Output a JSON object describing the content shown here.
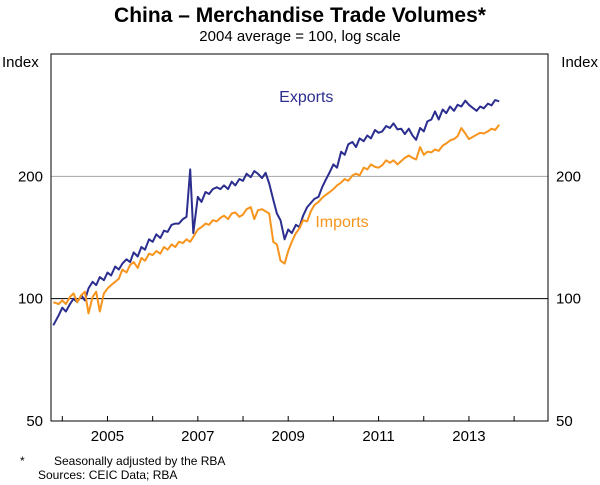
{
  "chart_data": {
    "type": "line",
    "title": "China – Merchandise Trade Volumes*",
    "subtitle": "2004 average = 100, log scale",
    "ylabel_left": "Index",
    "ylabel_right": "Index",
    "yscale": "log",
    "ylim": [
      50,
      400
    ],
    "y_ticks": [
      50,
      100,
      200
    ],
    "y_tick_labels": [
      "50",
      "100",
      "200"
    ],
    "xlim": [
      2003.75,
      2014.75
    ],
    "x_ticks": [
      2005,
      2007,
      2009,
      2011,
      2013
    ],
    "x_tick_labels": [
      "2005",
      "2007",
      "2009",
      "2011",
      "2013"
    ],
    "reference_line": 100,
    "series": [
      {
        "name": "Exports",
        "color": "#2b2e8f",
        "label_at": [
          2008.8,
          305
        ],
        "points": [
          [
            2003.8,
            86
          ],
          [
            2003.92,
            91
          ],
          [
            2004.0,
            95
          ],
          [
            2004.08,
            93
          ],
          [
            2004.17,
            97
          ],
          [
            2004.25,
            100
          ],
          [
            2004.33,
            98
          ],
          [
            2004.42,
            102
          ],
          [
            2004.5,
            99
          ],
          [
            2004.58,
            106
          ],
          [
            2004.67,
            110
          ],
          [
            2004.75,
            108
          ],
          [
            2004.83,
            113
          ],
          [
            2004.92,
            111
          ],
          [
            2005.0,
            116
          ],
          [
            2005.08,
            114
          ],
          [
            2005.17,
            120
          ],
          [
            2005.25,
            118
          ],
          [
            2005.33,
            122
          ],
          [
            2005.42,
            125
          ],
          [
            2005.5,
            123
          ],
          [
            2005.58,
            130
          ],
          [
            2005.67,
            127
          ],
          [
            2005.75,
            134
          ],
          [
            2005.83,
            132
          ],
          [
            2005.92,
            140
          ],
          [
            2006.0,
            138
          ],
          [
            2006.08,
            144
          ],
          [
            2006.17,
            141
          ],
          [
            2006.25,
            147
          ],
          [
            2006.33,
            146
          ],
          [
            2006.42,
            152
          ],
          [
            2006.5,
            153
          ],
          [
            2006.58,
            153
          ],
          [
            2006.67,
            157
          ],
          [
            2006.75,
            159
          ],
          [
            2006.83,
            208
          ],
          [
            2006.9,
            145
          ],
          [
            2007.0,
            178
          ],
          [
            2007.08,
            173
          ],
          [
            2007.17,
            183
          ],
          [
            2007.25,
            181
          ],
          [
            2007.33,
            186
          ],
          [
            2007.42,
            188
          ],
          [
            2007.5,
            186
          ],
          [
            2007.58,
            190
          ],
          [
            2007.67,
            186
          ],
          [
            2007.75,
            194
          ],
          [
            2007.83,
            190
          ],
          [
            2007.92,
            197
          ],
          [
            2008.0,
            195
          ],
          [
            2008.08,
            203
          ],
          [
            2008.17,
            199
          ],
          [
            2008.25,
            206
          ],
          [
            2008.33,
            203
          ],
          [
            2008.42,
            198
          ],
          [
            2008.5,
            204
          ],
          [
            2008.58,
            192
          ],
          [
            2008.67,
            175
          ],
          [
            2008.75,
            162
          ],
          [
            2008.83,
            156
          ],
          [
            2008.92,
            140
          ],
          [
            2009.0,
            148
          ],
          [
            2009.08,
            145
          ],
          [
            2009.17,
            152
          ],
          [
            2009.25,
            150
          ],
          [
            2009.33,
            160
          ],
          [
            2009.42,
            168
          ],
          [
            2009.5,
            172
          ],
          [
            2009.58,
            176
          ],
          [
            2009.67,
            178
          ],
          [
            2009.75,
            188
          ],
          [
            2009.83,
            196
          ],
          [
            2009.92,
            205
          ],
          [
            2010.0,
            214
          ],
          [
            2010.08,
            210
          ],
          [
            2010.17,
            230
          ],
          [
            2010.25,
            226
          ],
          [
            2010.33,
            240
          ],
          [
            2010.42,
            243
          ],
          [
            2010.5,
            236
          ],
          [
            2010.58,
            248
          ],
          [
            2010.67,
            244
          ],
          [
            2010.75,
            252
          ],
          [
            2010.83,
            248
          ],
          [
            2010.92,
            260
          ],
          [
            2011.0,
            256
          ],
          [
            2011.08,
            258
          ],
          [
            2011.17,
            266
          ],
          [
            2011.25,
            263
          ],
          [
            2011.33,
            270
          ],
          [
            2011.42,
            261
          ],
          [
            2011.5,
            262
          ],
          [
            2011.58,
            254
          ],
          [
            2011.67,
            262
          ],
          [
            2011.75,
            252
          ],
          [
            2011.83,
            246
          ],
          [
            2011.92,
            263
          ],
          [
            2012.0,
            258
          ],
          [
            2012.08,
            273
          ],
          [
            2012.17,
            276
          ],
          [
            2012.25,
            289
          ],
          [
            2012.33,
            276
          ],
          [
            2012.42,
            292
          ],
          [
            2012.5,
            286
          ],
          [
            2012.58,
            297
          ],
          [
            2012.67,
            290
          ],
          [
            2012.75,
            300
          ],
          [
            2012.83,
            297
          ],
          [
            2012.92,
            307
          ],
          [
            2013.0,
            300
          ],
          [
            2013.08,
            295
          ],
          [
            2013.17,
            290
          ],
          [
            2013.25,
            297
          ],
          [
            2013.33,
            294
          ],
          [
            2013.42,
            302
          ],
          [
            2013.5,
            299
          ],
          [
            2013.58,
            308
          ],
          [
            2013.67,
            306
          ]
        ]
      },
      {
        "name": "Imports",
        "color": "#f7941d",
        "label_at": [
          2009.6,
          150
        ],
        "points": [
          [
            2003.8,
            98
          ],
          [
            2003.92,
            97
          ],
          [
            2004.0,
            99
          ],
          [
            2004.08,
            97
          ],
          [
            2004.17,
            101
          ],
          [
            2004.25,
            103
          ],
          [
            2004.33,
            98
          ],
          [
            2004.42,
            102
          ],
          [
            2004.5,
            104
          ],
          [
            2004.58,
            92
          ],
          [
            2004.67,
            101
          ],
          [
            2004.75,
            104
          ],
          [
            2004.83,
            93
          ],
          [
            2004.92,
            103
          ],
          [
            2005.0,
            106
          ],
          [
            2005.08,
            108
          ],
          [
            2005.17,
            110
          ],
          [
            2005.25,
            112
          ],
          [
            2005.33,
            118
          ],
          [
            2005.42,
            116
          ],
          [
            2005.5,
            121
          ],
          [
            2005.58,
            123
          ],
          [
            2005.67,
            119
          ],
          [
            2005.75,
            126
          ],
          [
            2005.83,
            124
          ],
          [
            2005.92,
            129
          ],
          [
            2006.0,
            128
          ],
          [
            2006.08,
            131
          ],
          [
            2006.17,
            129
          ],
          [
            2006.25,
            134
          ],
          [
            2006.33,
            132
          ],
          [
            2006.42,
            136
          ],
          [
            2006.5,
            134
          ],
          [
            2006.58,
            138
          ],
          [
            2006.67,
            137
          ],
          [
            2006.75,
            140
          ],
          [
            2006.83,
            138
          ],
          [
            2006.92,
            143
          ],
          [
            2007.0,
            148
          ],
          [
            2007.08,
            150
          ],
          [
            2007.17,
            153
          ],
          [
            2007.25,
            152
          ],
          [
            2007.33,
            156
          ],
          [
            2007.42,
            155
          ],
          [
            2007.5,
            158
          ],
          [
            2007.58,
            160
          ],
          [
            2007.67,
            157
          ],
          [
            2007.75,
            162
          ],
          [
            2007.83,
            163
          ],
          [
            2007.92,
            159
          ],
          [
            2008.0,
            161
          ],
          [
            2008.08,
            166
          ],
          [
            2008.17,
            168
          ],
          [
            2008.25,
            157
          ],
          [
            2008.33,
            165
          ],
          [
            2008.42,
            166
          ],
          [
            2008.5,
            164
          ],
          [
            2008.58,
            162
          ],
          [
            2008.67,
            138
          ],
          [
            2008.75,
            136
          ],
          [
            2008.83,
            124
          ],
          [
            2008.92,
            122
          ],
          [
            2009.0,
            131
          ],
          [
            2009.08,
            138
          ],
          [
            2009.17,
            145
          ],
          [
            2009.25,
            149
          ],
          [
            2009.33,
            156
          ],
          [
            2009.42,
            155
          ],
          [
            2009.5,
            164
          ],
          [
            2009.58,
            170
          ],
          [
            2009.67,
            173
          ],
          [
            2009.75,
            177
          ],
          [
            2009.83,
            180
          ],
          [
            2009.92,
            183
          ],
          [
            2010.0,
            186
          ],
          [
            2010.08,
            190
          ],
          [
            2010.17,
            193
          ],
          [
            2010.25,
            197
          ],
          [
            2010.33,
            195
          ],
          [
            2010.42,
            201
          ],
          [
            2010.5,
            203
          ],
          [
            2010.58,
            201
          ],
          [
            2010.67,
            210
          ],
          [
            2010.75,
            208
          ],
          [
            2010.83,
            214
          ],
          [
            2010.92,
            211
          ],
          [
            2011.0,
            210
          ],
          [
            2011.08,
            213
          ],
          [
            2011.17,
            219
          ],
          [
            2011.25,
            216
          ],
          [
            2011.33,
            219
          ],
          [
            2011.42,
            214
          ],
          [
            2011.5,
            218
          ],
          [
            2011.58,
            222
          ],
          [
            2011.67,
            225
          ],
          [
            2011.75,
            222
          ],
          [
            2011.83,
            220
          ],
          [
            2011.92,
            236
          ],
          [
            2012.0,
            226
          ],
          [
            2012.08,
            230
          ],
          [
            2012.17,
            229
          ],
          [
            2012.25,
            233
          ],
          [
            2012.33,
            231
          ],
          [
            2012.42,
            238
          ],
          [
            2012.5,
            241
          ],
          [
            2012.58,
            245
          ],
          [
            2012.67,
            247
          ],
          [
            2012.75,
            251
          ],
          [
            2012.83,
            263
          ],
          [
            2012.92,
            255
          ],
          [
            2013.0,
            247
          ],
          [
            2013.08,
            250
          ],
          [
            2013.17,
            253
          ],
          [
            2013.25,
            256
          ],
          [
            2013.33,
            255
          ],
          [
            2013.42,
            258
          ],
          [
            2013.5,
            262
          ],
          [
            2013.58,
            260
          ],
          [
            2013.67,
            268
          ]
        ]
      }
    ]
  },
  "footnotes": {
    "marker": "*",
    "note_text": "Seasonally adjusted by the RBA",
    "sources": "Sources: CEIC Data; RBA"
  }
}
